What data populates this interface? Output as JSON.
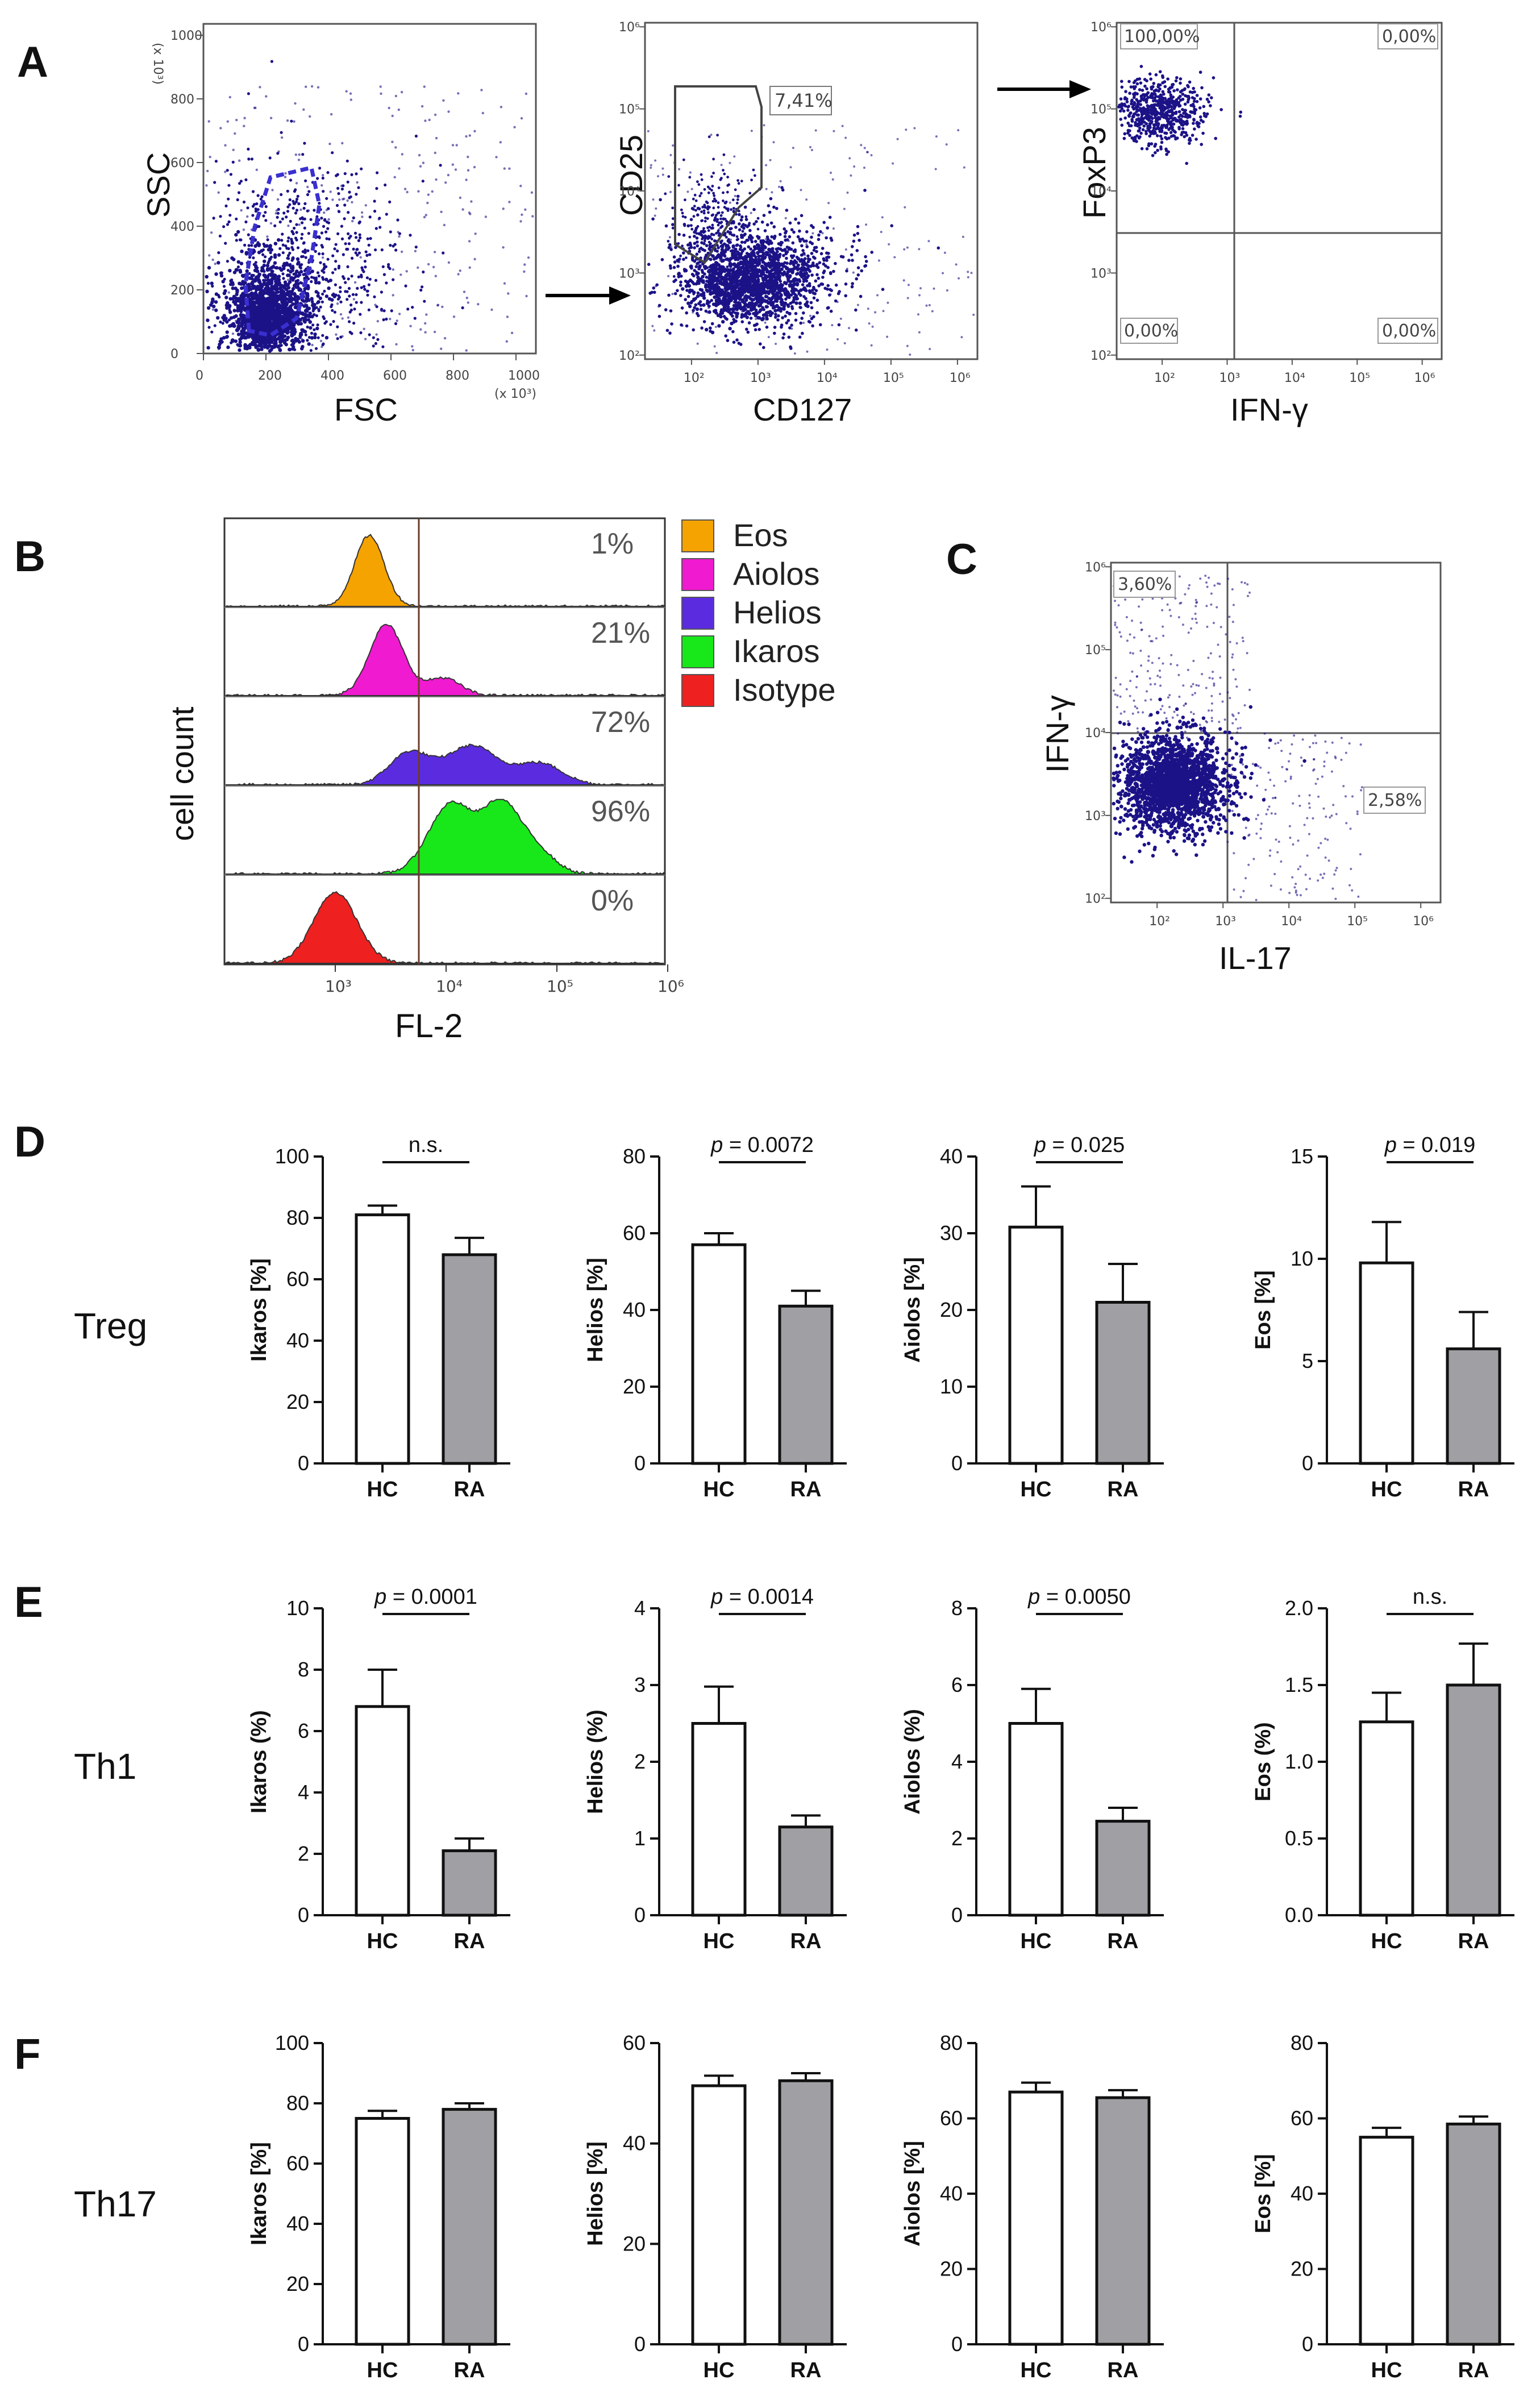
{
  "panels": {
    "A": "A",
    "B": "B",
    "C": "C",
    "D": "D",
    "E": "E",
    "F": "F"
  },
  "colors": {
    "dots": "#1c1287",
    "gate": "#3a2fd0",
    "bar_hc": "#ffffff",
    "bar_ra": "#a0a0a4",
    "eos": "#f5a300",
    "aiolos": "#f01ad0",
    "helios": "#5b2be0",
    "ikaros": "#18e81a",
    "isotype": "#ee2020"
  },
  "panelA": {
    "plot1": {
      "xlabel": "FSC",
      "ylabel": "SSC",
      "x_unit": "(x 10³)",
      "y_unit": "(x 10³)",
      "xticks": [
        "0",
        "200",
        "400",
        "600",
        "800",
        "1000"
      ],
      "yticks": [
        "0",
        "200",
        "400",
        "600",
        "800",
        "1000"
      ]
    },
    "plot2": {
      "xlabel": "CD127",
      "ylabel": "CD25",
      "gate_pct": "7,41%"
    },
    "plot3": {
      "xlabel": "IFN-γ",
      "ylabel": "FoxP3",
      "q_ul": "100,00%",
      "q_ur": "0,00%",
      "q_ll": "0,00%",
      "q_lr": "0,00%"
    },
    "log_ticks": [
      "10²",
      "10³",
      "10⁴",
      "10⁵",
      "10⁶"
    ]
  },
  "panelB": {
    "xlabel": "FL-2",
    "ylabel": "cell count",
    "xticks": [
      "10³",
      "10⁴",
      "10⁵",
      "10⁶"
    ],
    "histograms": [
      {
        "name": "Eos",
        "pct": "1%",
        "color": "#f5a300"
      },
      {
        "name": "Aiolos",
        "pct": "21%",
        "color": "#f01ad0"
      },
      {
        "name": "Helios",
        "pct": "72%",
        "color": "#5b2be0"
      },
      {
        "name": "Ikaros",
        "pct": "96%",
        "color": "#18e81a"
      },
      {
        "name": "Isotype",
        "pct": "0%",
        "color": "#ee2020"
      }
    ]
  },
  "panelC": {
    "xlabel": "IL-17",
    "ylabel": "IFN-γ",
    "q_ul": "3,60%",
    "q_lr": "2,58%",
    "log_ticks": [
      "10²",
      "10³",
      "10⁴",
      "10⁵",
      "10⁶"
    ]
  },
  "row_labels": {
    "D": "Treg",
    "E": "Th1",
    "F": "Th17"
  },
  "chart_data": [
    {
      "type": "bar",
      "row": "D",
      "title": "Treg",
      "ylabel": "Ikaros [%]",
      "categories": [
        "HC",
        "RA"
      ],
      "values": [
        81,
        68
      ],
      "errors": [
        3,
        5.5
      ],
      "ylim": [
        0,
        100
      ],
      "yticks": [
        "0",
        "20",
        "40",
        "60",
        "80",
        "100"
      ],
      "annotation": "n.s."
    },
    {
      "type": "bar",
      "row": "D",
      "title": "Treg",
      "ylabel": "Helios [%]",
      "categories": [
        "HC",
        "RA"
      ],
      "values": [
        57,
        41
      ],
      "errors": [
        3,
        4
      ],
      "ylim": [
        0,
        80
      ],
      "yticks": [
        "0",
        "20",
        "40",
        "60",
        "80"
      ],
      "annotation": "p = 0.0072"
    },
    {
      "type": "bar",
      "row": "D",
      "title": "Treg",
      "ylabel": "Aiolos [%]",
      "categories": [
        "HC",
        "RA"
      ],
      "values": [
        30.8,
        21
      ],
      "errors": [
        5.3,
        5
      ],
      "ylim": [
        0,
        40
      ],
      "yticks": [
        "0",
        "10",
        "20",
        "30",
        "40"
      ],
      "annotation": "p = 0.025"
    },
    {
      "type": "bar",
      "row": "D",
      "title": "Treg",
      "ylabel": "Eos [%]",
      "categories": [
        "HC",
        "RA"
      ],
      "values": [
        9.8,
        5.6
      ],
      "errors": [
        2,
        1.8
      ],
      "ylim": [
        0,
        15
      ],
      "yticks": [
        "0",
        "5",
        "10",
        "15"
      ],
      "annotation": "p = 0.019"
    },
    {
      "type": "bar",
      "row": "E",
      "title": "Th1",
      "ylabel": "Ikaros (%)",
      "categories": [
        "HC",
        "RA"
      ],
      "values": [
        6.8,
        2.1
      ],
      "errors": [
        1.2,
        0.4
      ],
      "ylim": [
        0,
        10
      ],
      "yticks": [
        "0",
        "2",
        "4",
        "6",
        "8",
        "10"
      ],
      "annotation": "p = 0.0001"
    },
    {
      "type": "bar",
      "row": "E",
      "title": "Th1",
      "ylabel": "Helios (%)",
      "categories": [
        "HC",
        "RA"
      ],
      "values": [
        2.5,
        1.15
      ],
      "errors": [
        0.48,
        0.15
      ],
      "ylim": [
        0,
        4
      ],
      "yticks": [
        "0",
        "1",
        "2",
        "3",
        "4"
      ],
      "annotation": "p = 0.0014"
    },
    {
      "type": "bar",
      "row": "E",
      "title": "Th1",
      "ylabel": "Aiolos (%)",
      "categories": [
        "HC",
        "RA"
      ],
      "values": [
        5,
        2.45
      ],
      "errors": [
        0.9,
        0.35
      ],
      "ylim": [
        0,
        8
      ],
      "yticks": [
        "0",
        "2",
        "4",
        "6",
        "8"
      ],
      "annotation": "p = 0.0050"
    },
    {
      "type": "bar",
      "row": "E",
      "title": "Th1",
      "ylabel": "Eos (%)",
      "categories": [
        "HC",
        "RA"
      ],
      "values": [
        1.26,
        1.5
      ],
      "errors": [
        0.19,
        0.27
      ],
      "ylim": [
        0,
        2
      ],
      "yticks": [
        "0.0",
        "0.5",
        "1.0",
        "1.5",
        "2.0"
      ],
      "annotation": "n.s."
    },
    {
      "type": "bar",
      "row": "F",
      "title": "Th17",
      "ylabel": "Ikaros [%]",
      "categories": [
        "HC",
        "RA"
      ],
      "values": [
        75,
        78
      ],
      "errors": [
        2.5,
        2
      ],
      "ylim": [
        0,
        100
      ],
      "yticks": [
        "0",
        "20",
        "40",
        "60",
        "80",
        "100"
      ],
      "annotation": ""
    },
    {
      "type": "bar",
      "row": "F",
      "title": "Th17",
      "ylabel": "Helios [%]",
      "categories": [
        "HC",
        "RA"
      ],
      "values": [
        51.5,
        52.5
      ],
      "errors": [
        2,
        1.5
      ],
      "ylim": [
        0,
        60
      ],
      "yticks": [
        "0",
        "20",
        "40",
        "60"
      ],
      "annotation": ""
    },
    {
      "type": "bar",
      "row": "F",
      "title": "Th17",
      "ylabel": "Aiolos [%]",
      "categories": [
        "HC",
        "RA"
      ],
      "values": [
        67,
        65.5
      ],
      "errors": [
        2.5,
        2
      ],
      "ylim": [
        0,
        80
      ],
      "yticks": [
        "0",
        "20",
        "40",
        "60",
        "80"
      ],
      "annotation": ""
    },
    {
      "type": "bar",
      "row": "F",
      "title": "Th17",
      "ylabel": "Eos [%]",
      "categories": [
        "HC",
        "RA"
      ],
      "values": [
        55,
        58.5
      ],
      "errors": [
        2.5,
        2
      ],
      "ylim": [
        0,
        80
      ],
      "yticks": [
        "0",
        "20",
        "40",
        "60",
        "80"
      ],
      "annotation": ""
    }
  ]
}
